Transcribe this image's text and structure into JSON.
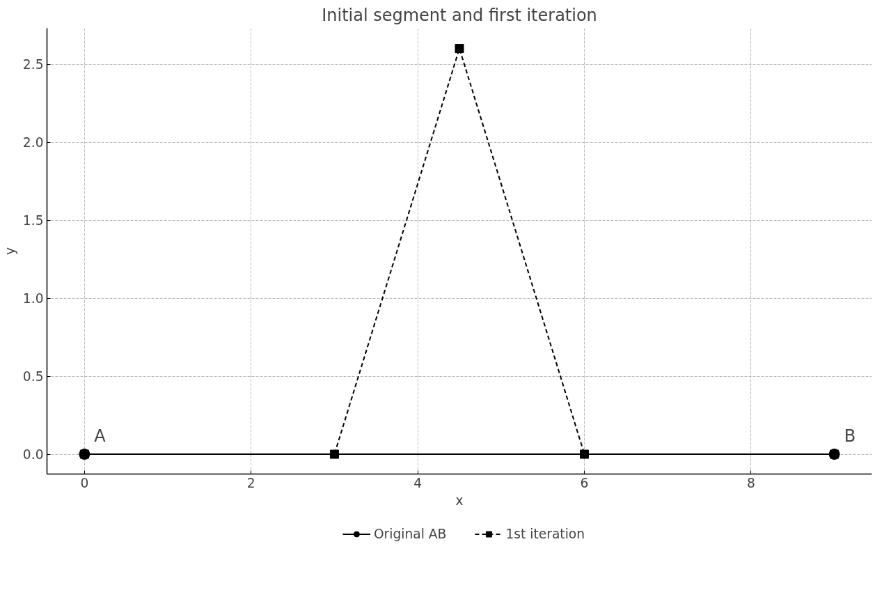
{
  "chart_data": {
    "type": "line",
    "title": "Initial segment and first iteration",
    "xlabel": "x",
    "ylabel": "y",
    "xlim": [
      -0.45,
      9.45
    ],
    "ylim": [
      -0.127,
      2.73
    ],
    "xticks": [
      0,
      2,
      4,
      6,
      8
    ],
    "yticks": [
      {
        "value": 0,
        "label": "0.0"
      },
      {
        "value": 0.5,
        "label": "0.5"
      },
      {
        "value": 1,
        "label": "1.0"
      },
      {
        "value": 1.5,
        "label": "1.5"
      },
      {
        "value": 2,
        "label": "2.0"
      },
      {
        "value": 2.5,
        "label": "2.5"
      }
    ],
    "grid": true,
    "legend": "bottom",
    "series": [
      {
        "name": "Original AB",
        "color": "#000000",
        "x": [
          0,
          9
        ],
        "values": [
          0,
          0
        ],
        "marker": "circle",
        "line_style": "solid"
      },
      {
        "name": "1st iteration",
        "color": "#000000",
        "x": [
          0,
          3,
          4.5,
          6,
          9
        ],
        "values": [
          0,
          0,
          2.6,
          0,
          0
        ],
        "marker": "square",
        "line_style": "dashed"
      }
    ],
    "annotations": [
      "A",
      "B"
    ]
  }
}
